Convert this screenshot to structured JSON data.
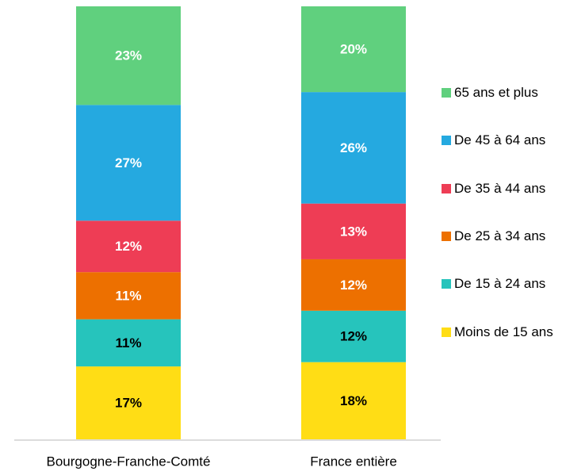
{
  "chart_data": {
    "type": "stacked_bar",
    "categories": [
      "Bourgogne-Franche-Comté",
      "France entière"
    ],
    "series": [
      {
        "name": "Moins de 15 ans",
        "color": "#FFDD15",
        "label_color": "#000000",
        "values": [
          17,
          18
        ],
        "value_labels": [
          "17%",
          "18%"
        ]
      },
      {
        "name": "De 15 à 24 ans",
        "color": "#26C4BC",
        "label_color": "#000000",
        "values": [
          11,
          12
        ],
        "value_labels": [
          "11%",
          "12%"
        ]
      },
      {
        "name": "De 25 à 34 ans",
        "color": "#ED7000",
        "label_color": "#ffffff",
        "values": [
          11,
          12
        ],
        "value_labels": [
          "11%",
          "12%"
        ]
      },
      {
        "name": "De 35 à 44 ans",
        "color": "#EE3D55",
        "label_color": "#ffffff",
        "values": [
          12,
          13
        ],
        "value_labels": [
          "12%",
          "13%"
        ]
      },
      {
        "name": "De 45 à 64 ans",
        "color": "#25A9E0",
        "label_color": "#ffffff",
        "values": [
          27,
          26
        ],
        "value_labels": [
          "27%",
          "26%"
        ]
      },
      {
        "name": "65 ans et plus",
        "color": "#60D07E",
        "label_color": "#ffffff",
        "values": [
          23,
          20
        ],
        "value_labels": [
          "23%",
          "20%"
        ]
      }
    ],
    "legend": "right"
  }
}
